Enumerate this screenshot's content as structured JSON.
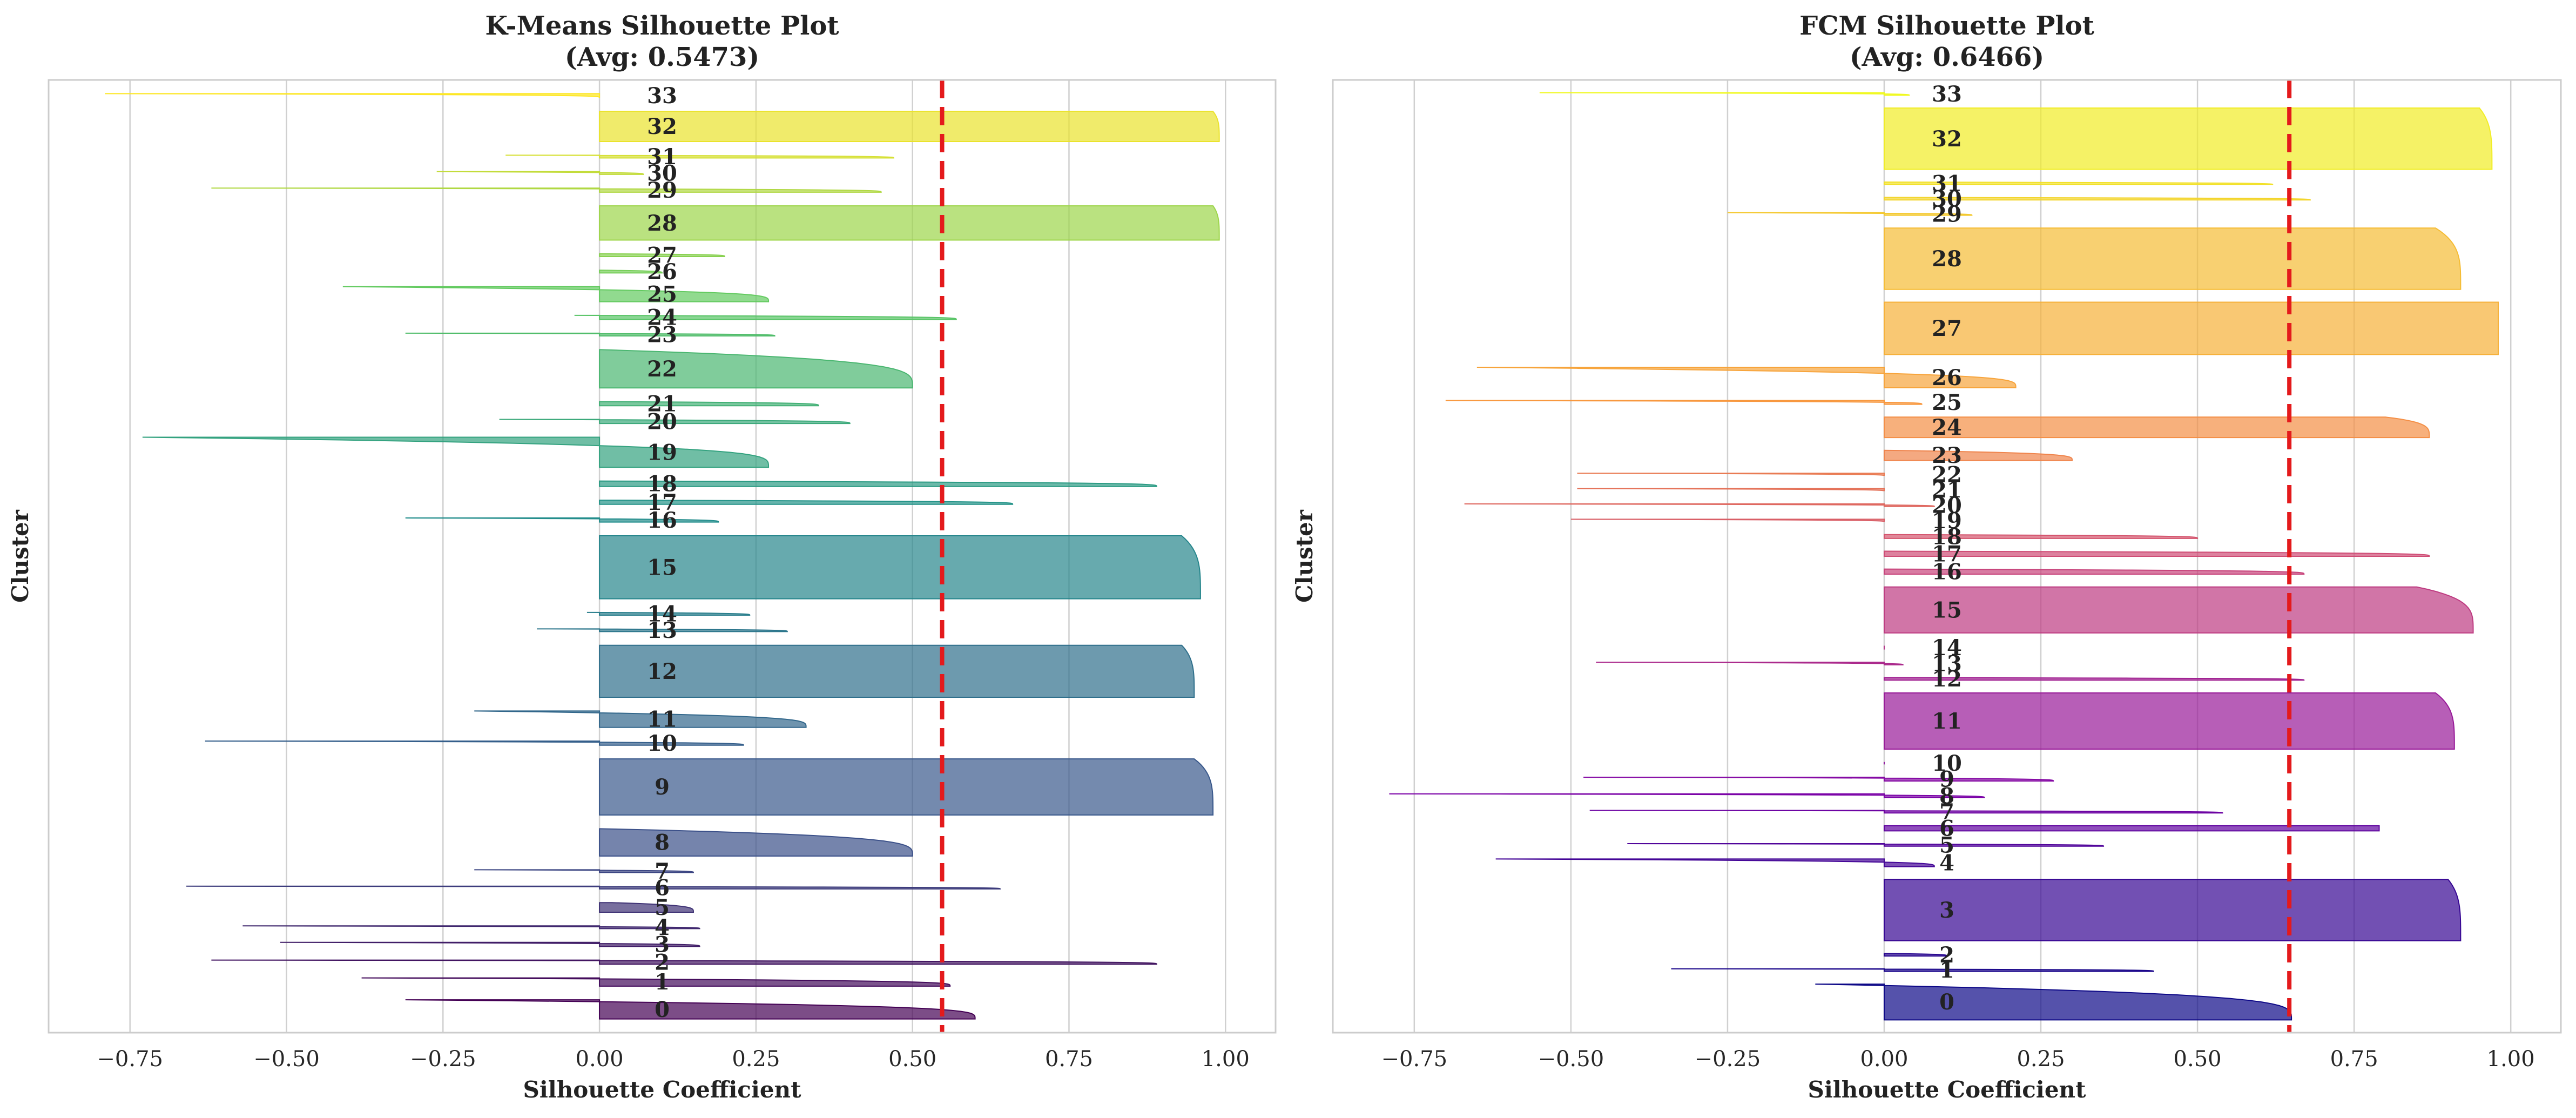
{
  "chart_data": [
    {
      "type": "bar",
      "orientation": "horizontal",
      "title": "K-Means Silhouette Plot",
      "subtitle": "(Avg: 0.5473)",
      "xlabel": "Silhouette Coefficient",
      "ylabel": "Cluster",
      "xlim": [
        -0.88,
        1.08
      ],
      "x_ticks": [
        "−0.75",
        "−0.50",
        "−0.25",
        "0.00",
        "0.25",
        "0.50",
        "0.75",
        "1.00"
      ],
      "x_tick_values": [
        -0.75,
        -0.5,
        -0.25,
        0,
        0.25,
        0.5,
        0.75,
        1.0
      ],
      "grid": "vertical",
      "colormap": "viridis",
      "avg_silhouette": 0.5473,
      "avg_line_color": "#e41a1c",
      "clusters": [
        {
          "label": "0",
          "size": 14,
          "max": 0.6,
          "min": -0.31
        },
        {
          "label": "1",
          "size": 6,
          "max": 0.56,
          "min": -0.38
        },
        {
          "label": "2",
          "size": 3,
          "max": 0.89,
          "min": -0.62
        },
        {
          "label": "3",
          "size": 3,
          "max": 0.16,
          "min": -0.51
        },
        {
          "label": "4",
          "size": 2,
          "max": 0.16,
          "min": -0.57
        },
        {
          "label": "5",
          "size": 7,
          "max": 0.15,
          "min": 0.02
        },
        {
          "label": "6",
          "size": 2,
          "max": 0.64,
          "min": -0.66
        },
        {
          "label": "7",
          "size": 2,
          "max": 0.15,
          "min": -0.2
        },
        {
          "label": "8",
          "size": 20,
          "max": 0.5,
          "min": 0.0
        },
        {
          "label": "9",
          "size": 41,
          "max": 0.98,
          "min": 0.95
        },
        {
          "label": "10",
          "size": 3,
          "max": 0.23,
          "min": -0.63
        },
        {
          "label": "11",
          "size": 12,
          "max": 0.33,
          "min": -0.2
        },
        {
          "label": "12",
          "size": 38,
          "max": 0.95,
          "min": 0.93
        },
        {
          "label": "13",
          "size": 2,
          "max": 0.3,
          "min": -0.1
        },
        {
          "label": "14",
          "size": 2,
          "max": 0.24,
          "min": -0.02
        },
        {
          "label": "15",
          "size": 46,
          "max": 0.96,
          "min": 0.93
        },
        {
          "label": "16",
          "size": 3,
          "max": 0.19,
          "min": -0.31
        },
        {
          "label": "17",
          "size": 3,
          "max": 0.66,
          "min": 0.0
        },
        {
          "label": "18",
          "size": 4,
          "max": 0.89,
          "min": 0.0
        },
        {
          "label": "19",
          "size": 22,
          "max": 0.27,
          "min": -0.73
        },
        {
          "label": "20",
          "size": 3,
          "max": 0.4,
          "min": -0.16
        },
        {
          "label": "21",
          "size": 3,
          "max": 0.35,
          "min": 0.0
        },
        {
          "label": "22",
          "size": 28,
          "max": 0.5,
          "min": 0.0
        },
        {
          "label": "23",
          "size": 2,
          "max": 0.28,
          "min": -0.31
        },
        {
          "label": "24",
          "size": 3,
          "max": 0.57,
          "min": -0.04
        },
        {
          "label": "25",
          "size": 11,
          "max": 0.27,
          "min": -0.41
        },
        {
          "label": "26",
          "size": 2,
          "max": 0.1,
          "min": 0.0
        },
        {
          "label": "27",
          "size": 2,
          "max": 0.2,
          "min": 0.0
        },
        {
          "label": "28",
          "size": 25,
          "max": 0.99,
          "min": 0.98
        },
        {
          "label": "29",
          "size": 3,
          "max": 0.45,
          "min": -0.62
        },
        {
          "label": "30",
          "size": 2,
          "max": 0.07,
          "min": -0.26
        },
        {
          "label": "31",
          "size": 2,
          "max": 0.47,
          "min": -0.15
        },
        {
          "label": "32",
          "size": 22,
          "max": 0.99,
          "min": 0.98
        },
        {
          "label": "33",
          "size": 3,
          "max": 0.0,
          "min": -0.79
        }
      ]
    },
    {
      "type": "bar",
      "orientation": "horizontal",
      "title": "FCM Silhouette Plot",
      "subtitle": "(Avg: 0.6466)",
      "xlabel": "Silhouette Coefficient",
      "ylabel": "Cluster",
      "xlim": [
        -0.88,
        1.08
      ],
      "x_ticks": [
        "−0.75",
        "−0.50",
        "−0.25",
        "0.00",
        "0.25",
        "0.50",
        "0.75",
        "1.00"
      ],
      "x_tick_values": [
        -0.75,
        -0.5,
        -0.25,
        0,
        0.25,
        0.5,
        0.75,
        1.0
      ],
      "grid": "vertical",
      "colormap": "plasma",
      "avg_silhouette": 0.6466,
      "avg_line_color": "#e41a1c",
      "clusters": [
        {
          "label": "0",
          "size": 28,
          "max": 0.65,
          "min": -0.11
        },
        {
          "label": "1",
          "size": 2,
          "max": 0.43,
          "min": -0.34
        },
        {
          "label": "2",
          "size": 2,
          "max": 0.1,
          "min": 0.0
        },
        {
          "label": "3",
          "size": 48,
          "max": 0.92,
          "min": 0.9
        },
        {
          "label": "4",
          "size": 6,
          "max": 0.08,
          "min": -0.62
        },
        {
          "label": "5",
          "size": 2,
          "max": 0.35,
          "min": -0.41
        },
        {
          "label": "6",
          "size": 4,
          "max": 0.79,
          "min": 0.79
        },
        {
          "label": "7",
          "size": 2,
          "max": 0.54,
          "min": -0.47
        },
        {
          "label": "8",
          "size": 3,
          "max": 0.16,
          "min": -0.79
        },
        {
          "label": "9",
          "size": 3,
          "max": 0.27,
          "min": -0.48
        },
        {
          "label": "10",
          "size": 2,
          "max": 0.0,
          "min": 0.0
        },
        {
          "label": "11",
          "size": 44,
          "max": 0.91,
          "min": 0.88
        },
        {
          "label": "12",
          "size": 2,
          "max": 0.67,
          "min": 0.0
        },
        {
          "label": "13",
          "size": 2,
          "max": 0.03,
          "min": -0.46
        },
        {
          "label": "14",
          "size": 3,
          "max": 0.0,
          "min": 0.0
        },
        {
          "label": "15",
          "size": 36,
          "max": 0.94,
          "min": 0.85
        },
        {
          "label": "16",
          "size": 4,
          "max": 0.67,
          "min": 0.0
        },
        {
          "label": "17",
          "size": 4,
          "max": 0.87,
          "min": 0.0
        },
        {
          "label": "18",
          "size": 3,
          "max": 0.5,
          "min": 0.0
        },
        {
          "label": "19",
          "size": 2,
          "max": 0.0,
          "min": -0.5
        },
        {
          "label": "20",
          "size": 2,
          "max": 0.08,
          "min": -0.67
        },
        {
          "label": "21",
          "size": 2,
          "max": 0.0,
          "min": -0.49
        },
        {
          "label": "22",
          "size": 2,
          "max": 0.0,
          "min": -0.49
        },
        {
          "label": "23",
          "size": 8,
          "max": 0.3,
          "min": 0.0
        },
        {
          "label": "24",
          "size": 16,
          "max": 0.87,
          "min": 0.8
        },
        {
          "label": "25",
          "size": 3,
          "max": 0.06,
          "min": -0.7
        },
        {
          "label": "26",
          "size": 16,
          "max": 0.21,
          "min": -0.65
        },
        {
          "label": "27",
          "size": 41,
          "max": 0.98,
          "min": 0.98
        },
        {
          "label": "28",
          "size": 48,
          "max": 0.92,
          "min": 0.88
        },
        {
          "label": "29",
          "size": 2,
          "max": 0.14,
          "min": -0.25
        },
        {
          "label": "30",
          "size": 2,
          "max": 0.68,
          "min": 0.0
        },
        {
          "label": "31",
          "size": 2,
          "max": 0.62,
          "min": 0.0
        },
        {
          "label": "32",
          "size": 48,
          "max": 0.97,
          "min": 0.95
        },
        {
          "label": "33",
          "size": 2,
          "max": 0.04,
          "min": -0.55
        }
      ]
    }
  ]
}
